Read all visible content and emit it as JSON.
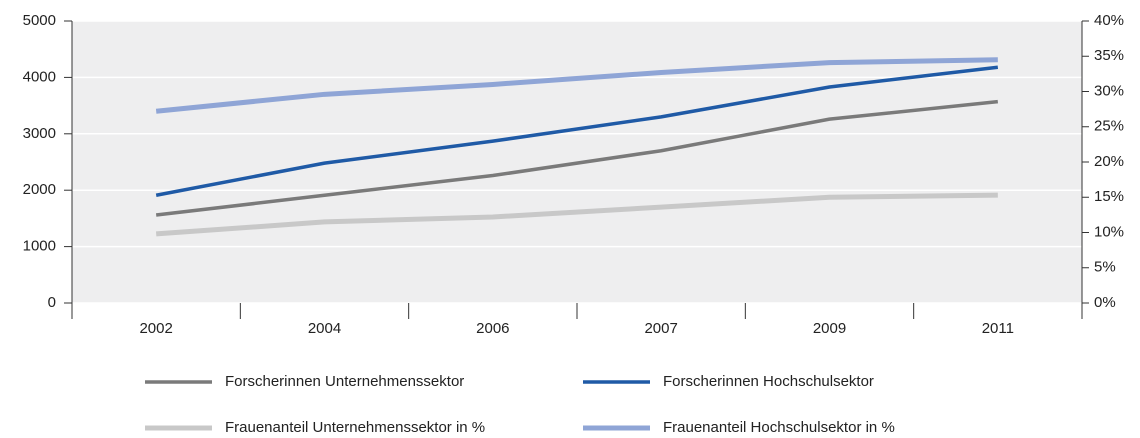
{
  "chart_data": {
    "type": "line",
    "categories": [
      "2002",
      "2004",
      "2006",
      "2007",
      "2009",
      "2011"
    ],
    "series": [
      {
        "name": "Forscherinnen Unternehmenssektor",
        "color": "#7a7a7a",
        "values": [
          1560,
          1910,
          2260,
          2700,
          3260,
          3570
        ]
      },
      {
        "name": "Forscherinnen Hochschulsektor",
        "color": "#1f5aa6",
        "values": [
          1910,
          2480,
          2870,
          3300,
          3830,
          4180
        ]
      },
      {
        "name": "Frauenanteil Unternehmenssektor in %",
        "color": "#c8c8c8",
        "axis": "y2",
        "values": [
          9.8,
          11.5,
          12.2,
          13.6,
          15,
          15.3
        ]
      },
      {
        "name": "Frauenanteil Hochschulsektor in %",
        "color": "#8fa5d6",
        "axis": "y2",
        "values": [
          27.2,
          29.6,
          31.0,
          32.7,
          34.1,
          34.5
        ]
      }
    ],
    "ylim": [
      0,
      5000
    ],
    "yticks": [
      0,
      1000,
      2000,
      3000,
      4000,
      5000
    ],
    "y2lim": [
      0,
      40
    ],
    "y2ticks": [
      {
        "value": 0,
        "label": "0%"
      },
      {
        "value": 5,
        "label": "5%"
      },
      {
        "value": 10,
        "label": "10%"
      },
      {
        "value": 15,
        "label": "15%"
      },
      {
        "value": 20,
        "label": "20%"
      },
      {
        "value": 25,
        "label": "25%"
      },
      {
        "value": 30,
        "label": "30%"
      },
      {
        "value": 35,
        "label": "35%"
      },
      {
        "value": 40,
        "label": "40%"
      }
    ],
    "grid": true
  }
}
